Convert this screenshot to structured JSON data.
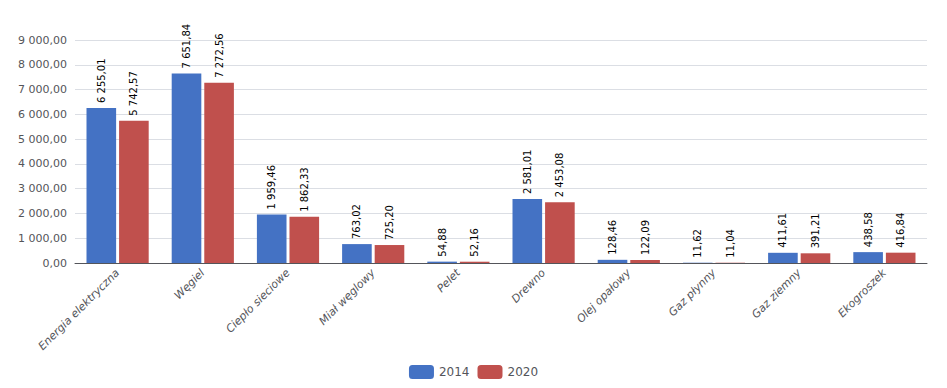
{
  "chart_data": {
    "type": "bar",
    "categories": [
      "Energia elektryczna",
      "Węgiel",
      "Ciepło sieciowe",
      "Miał węglowy",
      "Pelet",
      "Drewno",
      "Olej opałowy",
      "Gaz płynny",
      "Gaz ziemny",
      "Ekogroszek"
    ],
    "series": [
      {
        "name": "2014",
        "color": "#4472C4",
        "values": [
          6255.01,
          7651.84,
          1959.46,
          763.02,
          54.88,
          2581.01,
          128.46,
          11.62,
          411.61,
          438.58
        ],
        "value_labels": [
          "6 255,01",
          "7 651,84",
          "1 959,46",
          "763,02",
          "54,88",
          "2 581,01",
          "128,46",
          "11,62",
          "411,61",
          "438,58"
        ]
      },
      {
        "name": "2020",
        "color": "#C0504D",
        "values": [
          5742.57,
          7272.56,
          1862.33,
          725.2,
          52.16,
          2453.08,
          122.09,
          11.04,
          391.21,
          416.84
        ],
        "value_labels": [
          "5 742,57",
          "7 272,56",
          "1 862,33",
          "725,20",
          "52,16",
          "2 453,08",
          "122,09",
          "11,04",
          "391,21",
          "416,84"
        ]
      }
    ],
    "ylim": [
      0,
      9000
    ],
    "yticks": [
      {
        "value": 0,
        "label": "0,00"
      },
      {
        "value": 1000,
        "label": "1 000,00"
      },
      {
        "value": 2000,
        "label": "2 000,00"
      },
      {
        "value": 3000,
        "label": "3 000,00"
      },
      {
        "value": 4000,
        "label": "4 000,00"
      },
      {
        "value": 5000,
        "label": "5 000,00"
      },
      {
        "value": 6000,
        "label": "6 000,00"
      },
      {
        "value": 7000,
        "label": "7 000,00"
      },
      {
        "value": 8000,
        "label": "8 000,00"
      },
      {
        "value": 9000,
        "label": "9 000,00"
      }
    ],
    "grid": true,
    "legend": "bottom",
    "data_labels": true
  }
}
